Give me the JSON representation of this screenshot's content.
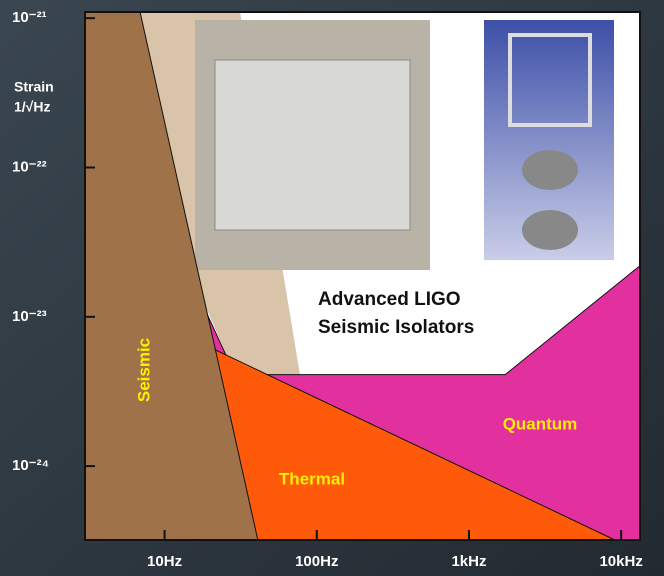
{
  "chart_data": {
    "type": "area",
    "ylabel": [
      "Strain",
      "1/√Hz"
    ],
    "annotation": [
      "Advanced LIGO",
      "Seismic Isolators"
    ],
    "xscale": "log",
    "yscale": "log",
    "xlim": [
      3,
      13300
    ],
    "ylim": [
      3.2e-25,
      1.1e-21
    ],
    "xticks": [
      {
        "value": 10,
        "label": "10Hz"
      },
      {
        "value": 100,
        "label": "100Hz"
      },
      {
        "value": 1000,
        "label": "1kHz"
      },
      {
        "value": 10000,
        "label": "10kHz"
      }
    ],
    "yticks": [
      {
        "value": 1e-21,
        "label": "10⁻²¹"
      },
      {
        "value": 1e-22,
        "label": "10⁻²²"
      },
      {
        "value": 1e-23,
        "label": "10⁻²³"
      },
      {
        "value": 1e-24,
        "label": "10⁻²⁴"
      }
    ],
    "series": [
      {
        "name": "Quantum",
        "color": "#e2309f",
        "x": [
          12.6,
          29,
          1730,
          13300
        ],
        "values": [
          2.6e-23,
          4.1e-24,
          4.1e-24,
          2.2e-23
        ]
      },
      {
        "name": "Thermal",
        "color": "#ff5a0a",
        "x": [
          9.3,
          18.3,
          9100
        ],
        "values": [
          1.5e-22,
          6.5e-24,
          3.2e-25
        ]
      },
      {
        "name": "Seismic",
        "color": "#a0724a",
        "x": [
          3,
          6.9,
          41
        ],
        "values": [
          1.1e-21,
          1.1e-21,
          3.2e-25
        ]
      }
    ]
  }
}
